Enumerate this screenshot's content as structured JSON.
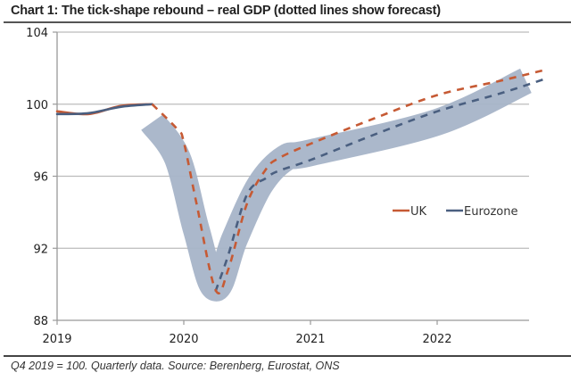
{
  "title": "Chart 1: The tick-shape rebound – real GDP (dotted lines show forecast)",
  "footnote": "Q4 2019 = 100. Quarterly data. Source: Berenberg, Eurostat, ONS",
  "colors": {
    "uk": "#c65a34",
    "eurozone": "#4a5f80",
    "band": "#a6b4c8",
    "grid": "#bcbcbc",
    "axis": "#999999"
  },
  "chart_data": {
    "type": "line",
    "title": "Chart 1: The tick-shape rebound – real GDP (dotted lines show forecast)",
    "xlabel": "",
    "ylabel": "",
    "xlim": [
      2019.0,
      2022.85
    ],
    "ylim": [
      88,
      104
    ],
    "yticks": [
      88,
      92,
      96,
      100,
      104
    ],
    "ytick_labels": [
      "88",
      "92",
      "96",
      "100",
      "104"
    ],
    "xticks": [
      2019,
      2020,
      2021,
      2022
    ],
    "xtick_labels": [
      "2019",
      "2020",
      "2021",
      "2022"
    ],
    "grid": "horizontal",
    "legend": {
      "position": "center-right",
      "entries": [
        "UK",
        "Eurozone"
      ]
    },
    "forecast_start": 2019.75,
    "series": [
      {
        "name": "UK",
        "actual": {
          "x": [
            2019.0,
            2019.25,
            2019.5,
            2019.75
          ],
          "y": [
            99.6,
            99.45,
            99.9,
            100.0
          ]
        },
        "forecast": {
          "x": [
            2019.75,
            2019.95,
            2020.0,
            2020.1,
            2020.25,
            2020.35,
            2020.5,
            2020.65,
            2020.75,
            2021.0,
            2021.5,
            2022.0,
            2022.5,
            2022.85
          ],
          "y": [
            100.0,
            98.6,
            97.9,
            94.5,
            89.7,
            90.8,
            94.5,
            96.4,
            97.0,
            97.8,
            99.2,
            100.5,
            101.3,
            101.9
          ]
        }
      },
      {
        "name": "Eurozone",
        "actual": {
          "x": [
            2019.0,
            2019.25,
            2019.5,
            2019.75
          ],
          "y": [
            99.45,
            99.5,
            99.85,
            100.0
          ]
        },
        "forecast": {
          "x": [
            2020.25,
            2020.35,
            2020.5,
            2020.65,
            2020.75,
            2021.0,
            2021.5,
            2022.0,
            2022.5,
            2022.85
          ],
          "y": [
            89.6,
            91.6,
            95.0,
            95.9,
            96.3,
            96.9,
            98.3,
            99.6,
            100.6,
            101.4
          ]
        }
      }
    ],
    "annotations": [
      {
        "type": "band",
        "label": "forecast range (shaded)",
        "x": [
          2019.75,
          2019.95,
          2020.1,
          2020.25,
          2020.4,
          2020.6,
          2020.8,
          2021.0,
          2022.0,
          2022.7
        ],
        "y": [
          99.0,
          97.0,
          93.0,
          89.8,
          92.5,
          95.5,
          97.0,
          97.3,
          99.0,
          101.3
        ]
      }
    ]
  }
}
